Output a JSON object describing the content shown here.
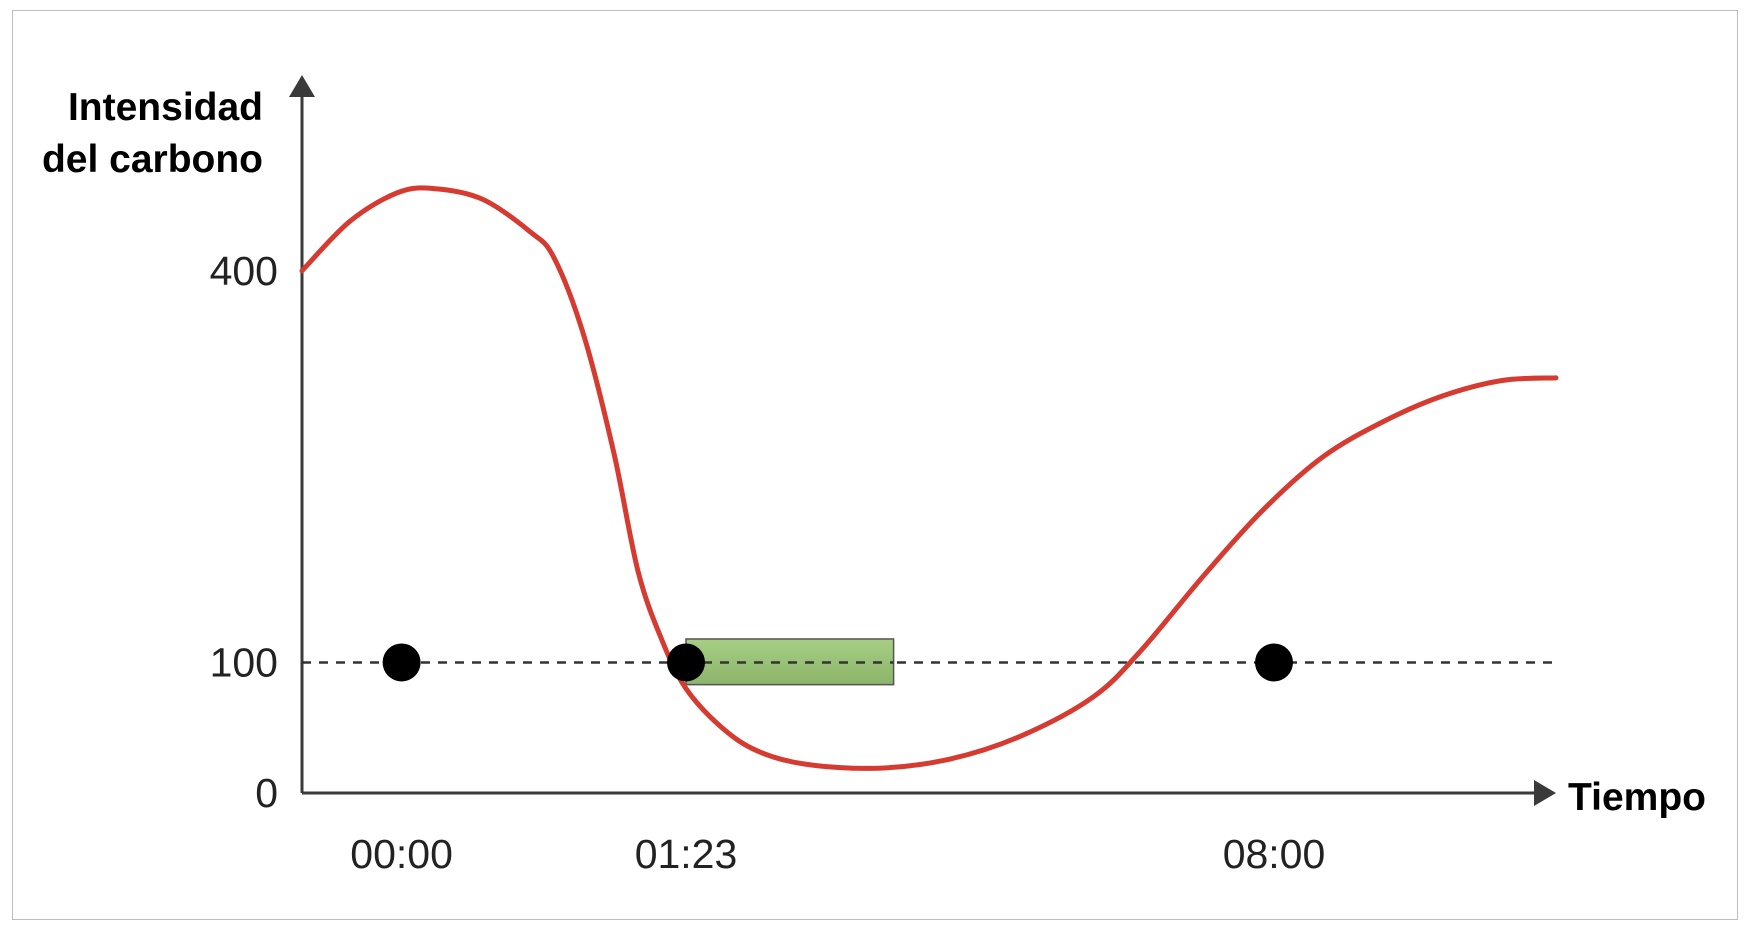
{
  "chart_data": {
    "type": "line",
    "ylabel_lines": [
      "Intensidad",
      "del carbono"
    ],
    "xlabel": "Tiempo",
    "y_ticks": [
      400,
      100,
      0
    ],
    "ylim": [
      0,
      550
    ],
    "x_ticks": [
      {
        "label": "00:00",
        "x": 0.83
      },
      {
        "label": "01:23",
        "x": 3.2
      },
      {
        "label": "08:00",
        "x": 8.1
      }
    ],
    "xlim": [
      0,
      10.45
    ],
    "series": [
      {
        "color": "#d63b32",
        "points": [
          [
            0,
            400
          ],
          [
            0.4,
            438
          ],
          [
            0.8,
            460
          ],
          [
            1.1,
            463
          ],
          [
            1.5,
            455
          ],
          [
            1.9,
            430
          ],
          [
            2.1,
            410
          ],
          [
            2.35,
            350
          ],
          [
            2.6,
            260
          ],
          [
            2.8,
            170
          ],
          [
            3.0,
            117
          ],
          [
            3.2,
            80
          ],
          [
            3.5,
            50
          ],
          [
            3.8,
            32
          ],
          [
            4.2,
            22
          ],
          [
            4.8,
            19
          ],
          [
            5.4,
            26
          ],
          [
            6.0,
            44
          ],
          [
            6.6,
            74
          ],
          [
            7.0,
            110
          ],
          [
            7.5,
            165
          ],
          [
            8.0,
            216
          ],
          [
            8.5,
            257
          ],
          [
            9.0,
            284
          ],
          [
            9.5,
            304
          ],
          [
            10.0,
            316
          ],
          [
            10.45,
            318
          ]
        ]
      }
    ],
    "threshold": {
      "value": 100,
      "style": "dashed"
    },
    "markers": [
      {
        "x": 0.83,
        "y": 100
      },
      {
        "x": 3.2,
        "y": 100
      },
      {
        "x": 8.1,
        "y": 100
      }
    ],
    "highlight": {
      "x_start": 3.2,
      "x_end": 4.93,
      "y_bottom": 83,
      "y_top": 118,
      "color": "#8cba6a"
    },
    "colors": {
      "axis": "#3a3a3a",
      "curve": "#d63b32",
      "marker": "#000000",
      "threshold": "#333333"
    }
  }
}
